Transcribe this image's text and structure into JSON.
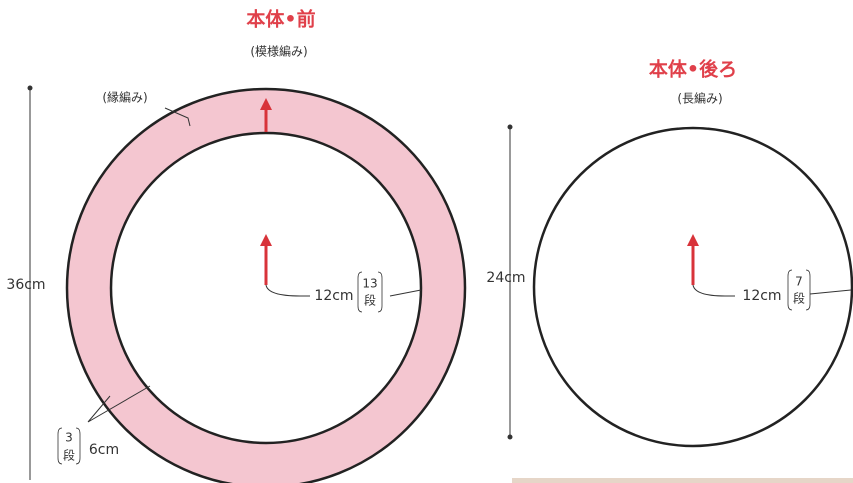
{
  "front": {
    "title": "本体•前",
    "subtitle": "(模様編み)",
    "border_label": "(縁編み)",
    "height": "36cm",
    "radius": "12cm",
    "rows": "13",
    "rows_unit": "段",
    "border_rows": "3",
    "border_rows_unit": "段",
    "border_width": "6cm"
  },
  "back": {
    "title": "本体•後ろ",
    "subtitle": "(長編み)",
    "height": "24cm",
    "radius": "12cm",
    "rows": "7",
    "rows_unit": "段"
  }
}
